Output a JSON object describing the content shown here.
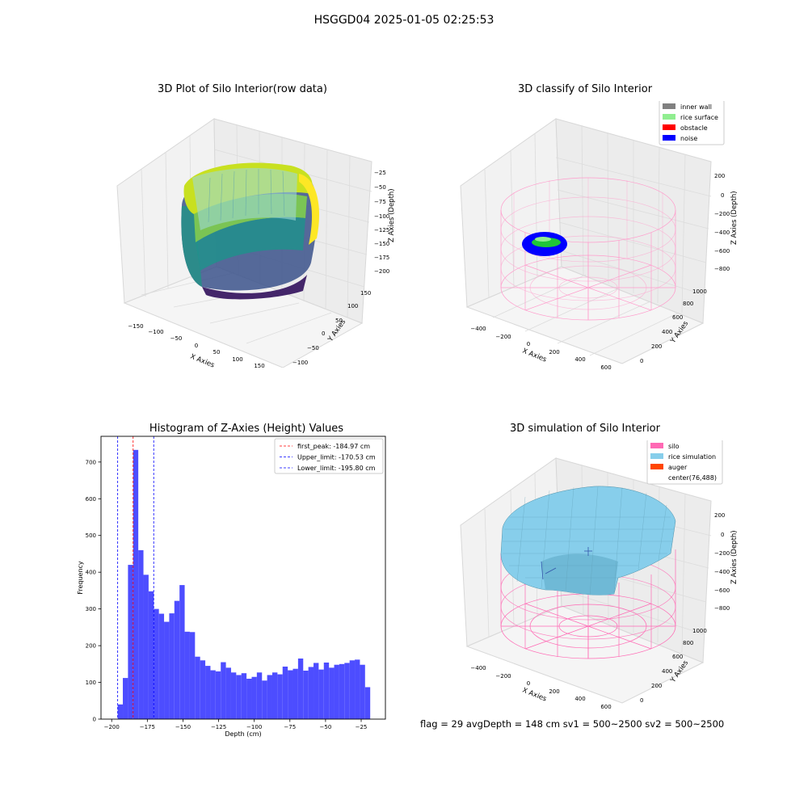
{
  "figure": {
    "title": "HSGGD04 2025-01-05 02:25:53",
    "footer": "flag = 29  avgDepth = 148 cm  sv1 = 500~2500  sv2 = 500~2500"
  },
  "panels": {
    "raw": {
      "title": "3D Plot of Silo Interior(row data)",
      "xlabel": "X Axies",
      "ylabel": "Y Axies",
      "zlabel": "Z Axies (Depth)",
      "xticks": [
        "−150",
        "−100",
        "−50",
        "0",
        "50",
        "100",
        "150"
      ],
      "yticks": [
        "−100",
        "−50",
        "0",
        "50",
        "100",
        "150"
      ],
      "zticks": [
        "−25",
        "−50",
        "−75",
        "−100",
        "−125",
        "−150",
        "−175",
        "−200"
      ]
    },
    "classify": {
      "title": "3D classify of Silo Interior",
      "xlabel": "X Axies",
      "ylabel": "Y Axies",
      "zlabel": "Z Axies (Depth)",
      "xticks": [
        "−400",
        "−200",
        "0",
        "200",
        "400",
        "600"
      ],
      "yticks": [
        "0",
        "200",
        "400",
        "600",
        "800",
        "1000"
      ],
      "zticks": [
        "200",
        "0",
        "−200",
        "−400",
        "−600",
        "−800"
      ],
      "legend": [
        {
          "label": "inner wall",
          "color": "#808080"
        },
        {
          "label": "rice surface",
          "color": "#90ee90"
        },
        {
          "label": "obstacle",
          "color": "#ff0000"
        },
        {
          "label": "noise",
          "color": "#0000ff"
        }
      ]
    },
    "simulation": {
      "title": "3D simulation of Silo Interior",
      "xlabel": "X Axies",
      "ylabel": "Y Axies",
      "zlabel": "Z Axies (Depth)",
      "xticks": [
        "−400",
        "−200",
        "0",
        "200",
        "400",
        "600"
      ],
      "yticks": [
        "0",
        "200",
        "400",
        "600",
        "800",
        "1000"
      ],
      "zticks": [
        "200",
        "0",
        "−200",
        "−400",
        "−600",
        "−800"
      ],
      "legend": [
        {
          "label": "silo",
          "color": "#ff69b4"
        },
        {
          "label": "rice simulation",
          "color": "#87ceeb"
        },
        {
          "label": "auger",
          "color": "#ff4500"
        },
        {
          "label": "center(76,488)",
          "color": "#ffffff"
        }
      ]
    }
  },
  "chart_data": [
    {
      "type": "bar",
      "title": "Histogram of Z-Axies (Height) Values",
      "xlabel": "Depth (cm)",
      "ylabel": "Frequency",
      "xlim": [
        -207.5,
        -8
      ],
      "ylim": [
        0,
        770
      ],
      "xticks": [
        -200,
        -175,
        -150,
        -125,
        -100,
        -75,
        -50,
        -25
      ],
      "yticks": [
        0,
        100,
        200,
        300,
        400,
        500,
        600,
        700
      ],
      "bar_color": "#4d4dff",
      "bin_start": -195.8,
      "bin_width": 3.615,
      "values": [
        40,
        112,
        420,
        733,
        460,
        393,
        348,
        300,
        287,
        265,
        288,
        322,
        365,
        238,
        237,
        170,
        160,
        145,
        133,
        130,
        155,
        140,
        127,
        120,
        125,
        110,
        115,
        127,
        105,
        120,
        127,
        122,
        143,
        133,
        137,
        165,
        132,
        142,
        153,
        135,
        154,
        140,
        148,
        150,
        153,
        160,
        162,
        148,
        87
      ],
      "lines": [
        {
          "label": "first_peak: -184.97 cm",
          "value": -184.97,
          "color": "#ff0000"
        },
        {
          "label": "Upper_limit: -170.53 cm",
          "value": -170.53,
          "color": "#0000ff"
        },
        {
          "label": "Lower_limit: -195.80 cm",
          "value": -195.8,
          "color": "#0000ff"
        }
      ]
    }
  ]
}
